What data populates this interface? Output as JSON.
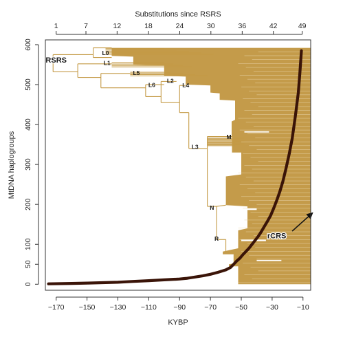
{
  "chart_data": {
    "type": "line",
    "title": "",
    "xlabel": "KYBP",
    "ylabel": "MtDNA haplogroups",
    "top_axis_label": "Substitutions since RSRS",
    "xlim": [
      -177,
      -5
    ],
    "ylim": [
      -15,
      612
    ],
    "x_ticks": [
      -170,
      -150,
      -130,
      -110,
      -90,
      -70,
      -50,
      -30,
      -10
    ],
    "x_tick_labels": [
      "−170",
      "−150",
      "−130",
      "−110",
      "−90",
      "−70",
      "−50",
      "−30",
      "−10"
    ],
    "y_ticks": [
      0,
      50,
      100,
      200,
      300,
      400,
      500,
      600
    ],
    "y_tick_labels": [
      "0",
      "50",
      "100",
      "200",
      "300",
      "400",
      "500",
      "600"
    ],
    "top_ticks": [
      -170,
      -150.7,
      -130.5,
      -110.2,
      -89.9,
      -69.7,
      -49.4,
      -29.2,
      -10.5
    ],
    "top_tick_labels": [
      "1",
      "7",
      "12",
      "18",
      "24",
      "30",
      "36",
      "42",
      "49"
    ],
    "grid": false,
    "series": [
      {
        "x": [
          -175,
          -160,
          -150,
          -140,
          -130,
          -120,
          -110,
          -100,
          -90,
          -85,
          -80,
          -75,
          -70,
          -65,
          -60,
          -57,
          -55,
          -53,
          -51,
          -49,
          -47,
          -45,
          -43,
          -41,
          -39,
          -37,
          -35,
          -33,
          -31,
          -29,
          -27,
          -25,
          -23,
          -21,
          -19,
          -17,
          -15,
          -13,
          -12,
          -11
        ],
        "values": [
          1,
          2,
          3,
          4,
          5,
          7,
          9,
          11,
          13,
          15,
          18,
          21,
          25,
          30,
          36,
          42,
          50,
          58,
          65,
          74,
          82,
          90,
          100,
          110,
          120,
          132,
          145,
          158,
          172,
          190,
          210,
          232,
          258,
          290,
          325,
          365,
          420,
          480,
          530,
          585
        ],
        "color": "#3a1408"
      }
    ],
    "branch_labels": [
      {
        "text": "RSRS",
        "x": -170,
        "y": 560
      },
      {
        "text": "L0",
        "x": -138,
        "y": 578
      },
      {
        "text": "L1",
        "x": -137,
        "y": 553
      },
      {
        "text": "L5",
        "x": -118,
        "y": 528
      },
      {
        "text": "L6",
        "x": -108,
        "y": 498
      },
      {
        "text": "L2",
        "x": -96,
        "y": 508
      },
      {
        "text": "L4",
        "x": -86,
        "y": 497
      },
      {
        "text": "L3",
        "x": -80,
        "y": 343
      },
      {
        "text": "M",
        "x": -58,
        "y": 368
      },
      {
        "text": "N",
        "x": -69,
        "y": 190
      },
      {
        "text": "R",
        "x": -66,
        "y": 113
      },
      {
        "text": "rCRS",
        "x": -27,
        "y": 120
      }
    ],
    "arrow": {
      "from_x": -17,
      "from_y": 133,
      "to_x": -4,
      "to_y": 178
    },
    "colors": {
      "tree": "#c49a45",
      "fill": "#c19640",
      "curve": "#3a1408",
      "axis": "#333333"
    }
  }
}
